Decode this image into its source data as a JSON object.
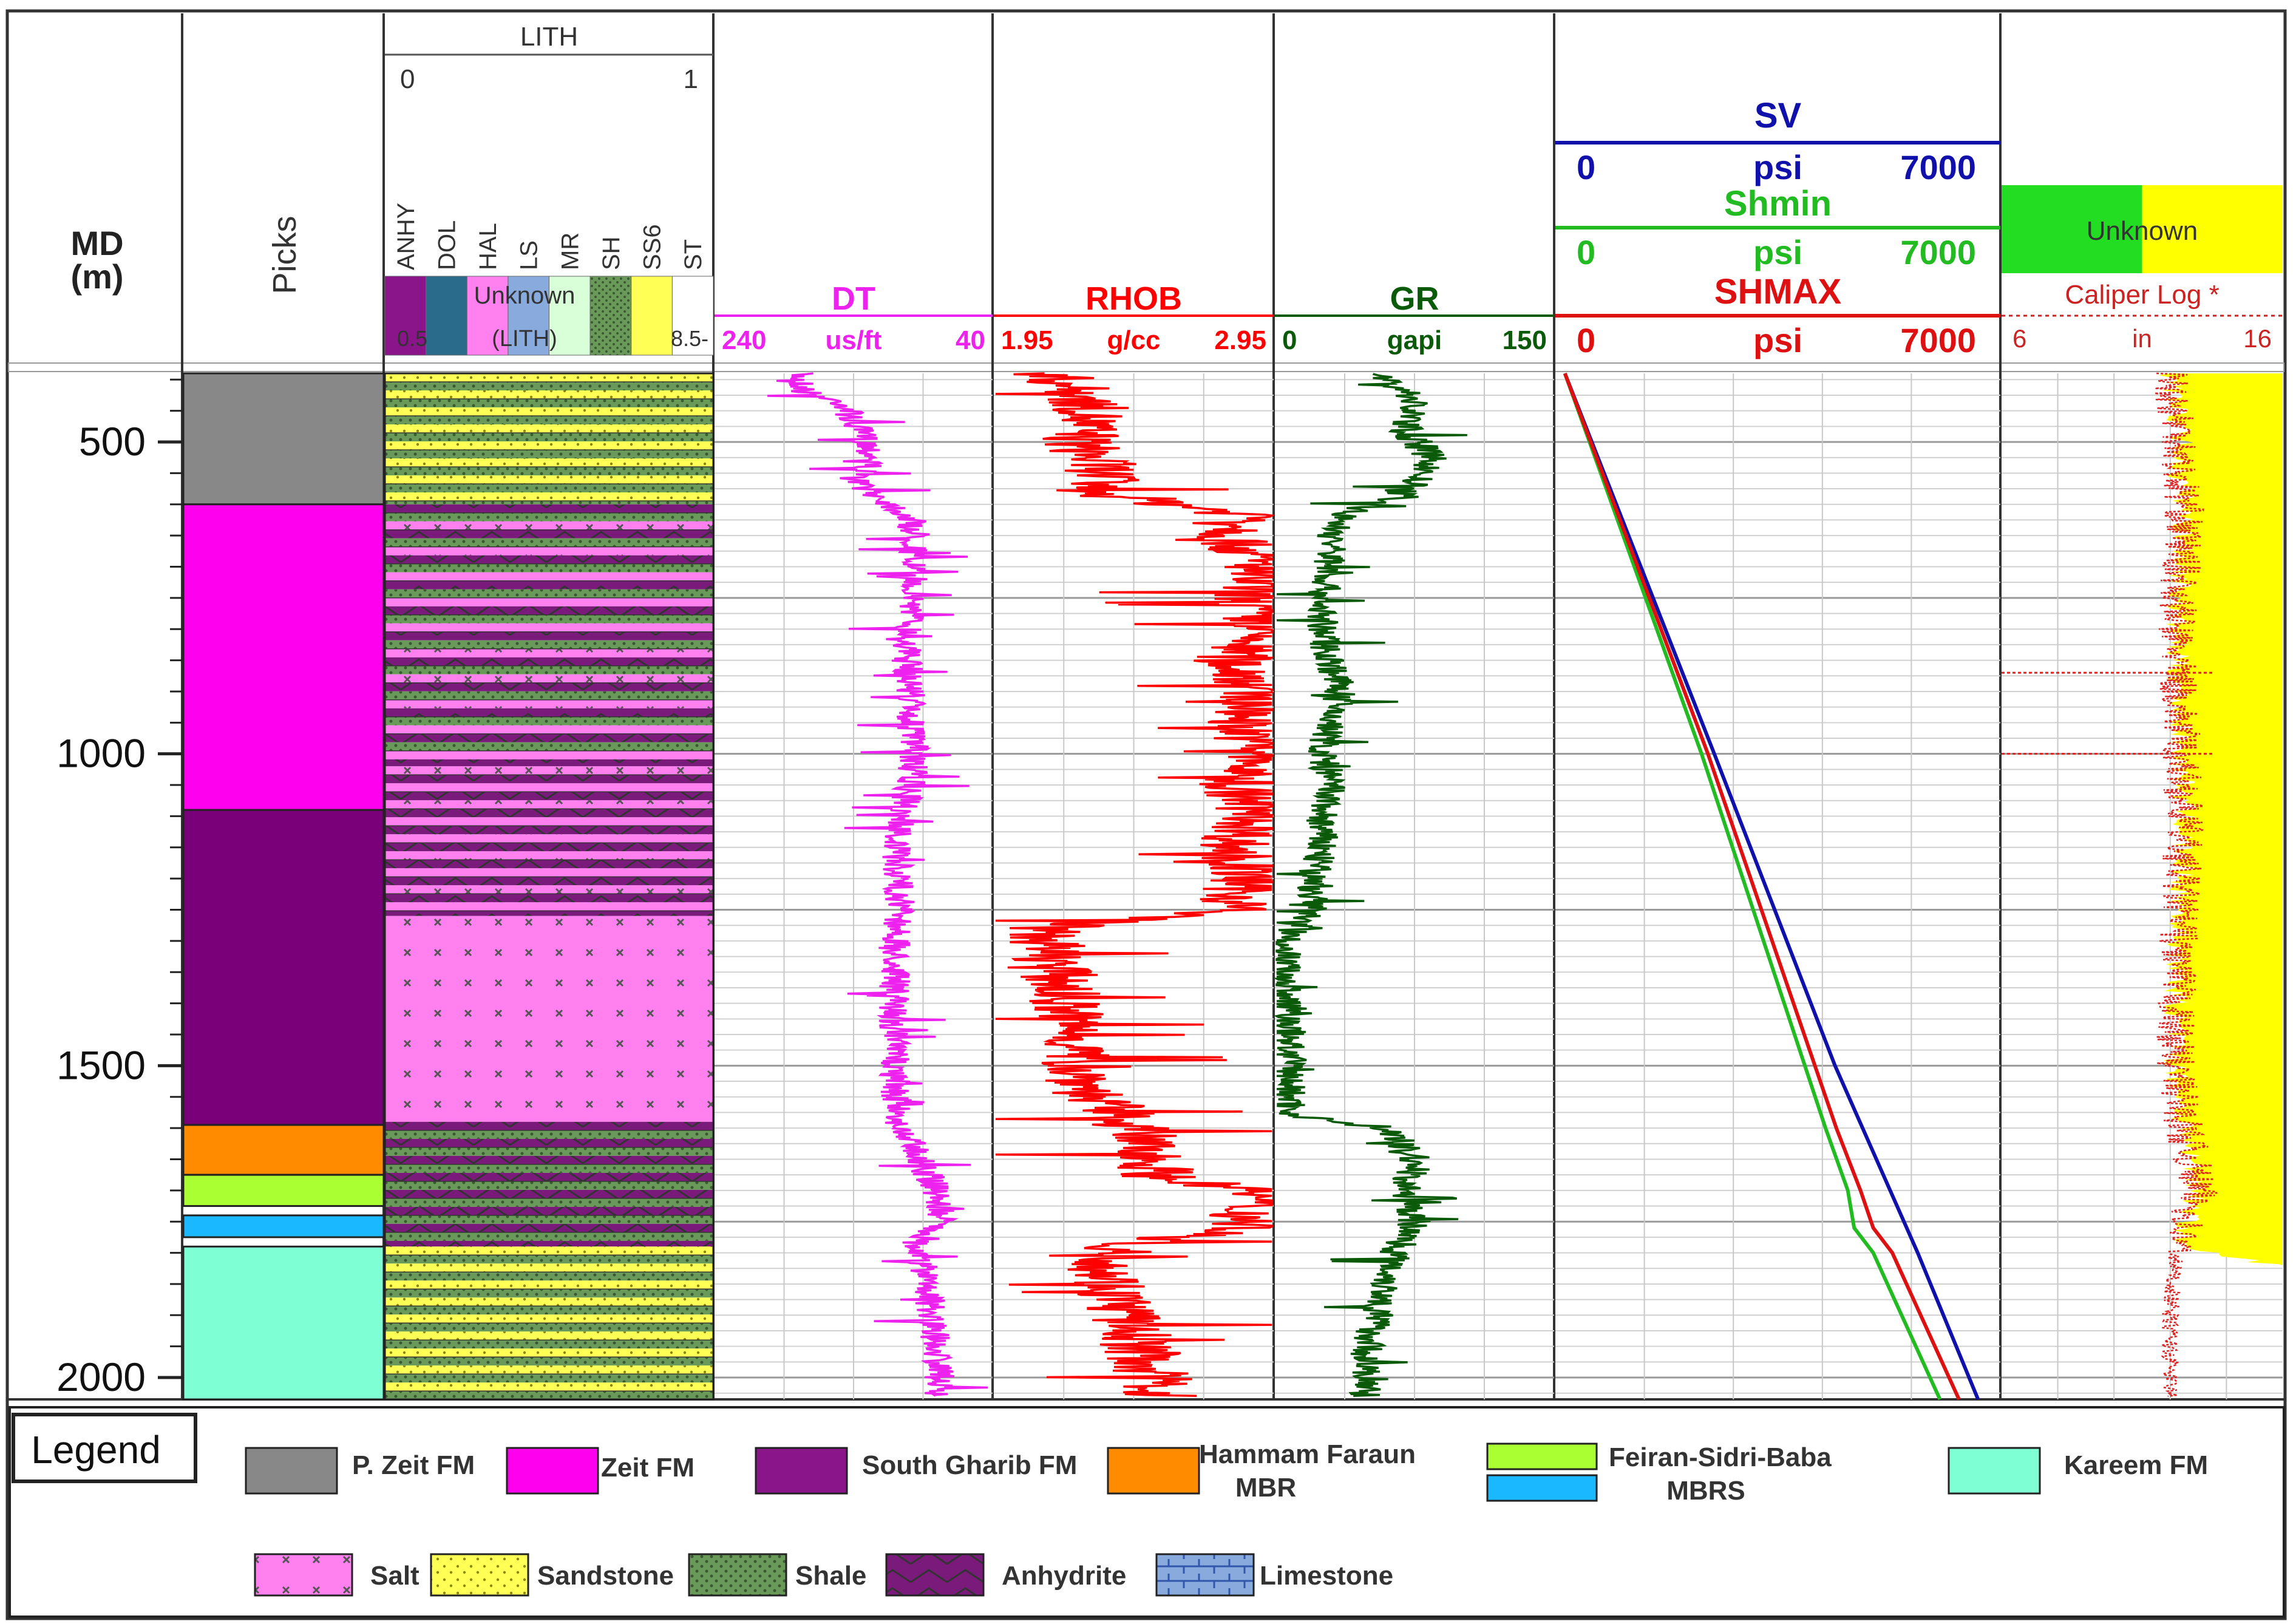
{
  "chart_data": {
    "type": "well-log",
    "depth_axis": {
      "label_line1": "MD",
      "label_line2": "(m)",
      "range": [
        390,
        2035
      ],
      "ticks": [
        500,
        1000,
        1500,
        2000
      ],
      "tick_labels": [
        "500",
        "1000",
        "1500",
        "2000"
      ]
    },
    "tracks": {
      "picks": {
        "title": "Picks",
        "intervals": [
          {
            "name": "P. Zeit FM",
            "top": 390,
            "base": 600,
            "color": "#888888"
          },
          {
            "name": "Zeit FM",
            "top": 600,
            "base": 1090,
            "color": "#ff00ee"
          },
          {
            "name": "South Gharib FM",
            "top": 1090,
            "base": 1595,
            "color": "#7a007a"
          },
          {
            "name": "Hammam Faraun MBR",
            "top": 1595,
            "base": 1675,
            "color": "#ff8c00"
          },
          {
            "name": "Feiran-Sidri-Baba MBRS (Feiran)",
            "top": 1675,
            "base": 1725,
            "color": "#aaff33"
          },
          {
            "name": "Feiran-Sidri-Baba MBRS (Sidri)",
            "top": 1740,
            "base": 1775,
            "color": "#1ab8ff"
          },
          {
            "name": "Kareem FM",
            "top": 1790,
            "base": 2035,
            "color": "#7fffd4"
          }
        ]
      },
      "lith": {
        "title": "LITH",
        "scale_min": "0",
        "scale_max": "1",
        "components": [
          "ANHY",
          "DOL",
          "HAL",
          "LS",
          "MR",
          "SH",
          "SS6",
          "ST"
        ],
        "overlay_text": "Unknown",
        "overlay_text2": "(LITH)",
        "bottom_left": "0.5",
        "bottom_right": "8.5-",
        "intervals": [
          {
            "top": 390,
            "base": 600,
            "type": "sandstone-shale"
          },
          {
            "top": 600,
            "base": 1020,
            "type": "anhydrite-shale-salt"
          },
          {
            "top": 1020,
            "base": 1260,
            "type": "salt-anhydrite"
          },
          {
            "top": 1260,
            "base": 1590,
            "type": "salt"
          },
          {
            "top": 1590,
            "base": 1790,
            "type": "anhydrite-shale"
          },
          {
            "top": 1790,
            "base": 2035,
            "type": "sandstone-shale"
          }
        ]
      },
      "dt": {
        "name": "DT",
        "unit": "us/ft",
        "left_value": "240",
        "right_value": "40",
        "color": "#ee22ee",
        "points": [
          [
            390,
            180
          ],
          [
            420,
            175
          ],
          [
            440,
            145
          ],
          [
            470,
            140
          ],
          [
            500,
            130
          ],
          [
            530,
            125
          ],
          [
            560,
            140
          ],
          [
            590,
            120
          ],
          [
            620,
            100
          ],
          [
            650,
            95
          ],
          [
            700,
            98
          ],
          [
            750,
            96
          ],
          [
            800,
            100
          ],
          [
            850,
            102
          ],
          [
            900,
            98
          ],
          [
            950,
            100
          ],
          [
            1000,
            96
          ],
          [
            1050,
            100
          ],
          [
            1100,
            105
          ],
          [
            1150,
            110
          ],
          [
            1200,
            108
          ],
          [
            1250,
            106
          ],
          [
            1300,
            110
          ],
          [
            1350,
            110
          ],
          [
            1400,
            111
          ],
          [
            1450,
            111
          ],
          [
            1500,
            110
          ],
          [
            1540,
            110
          ],
          [
            1580,
            108
          ],
          [
            1600,
            108
          ],
          [
            1630,
            95
          ],
          [
            1660,
            90
          ],
          [
            1700,
            80
          ],
          [
            1750,
            78
          ],
          [
            1780,
            90
          ],
          [
            1800,
            95
          ],
          [
            1850,
            85
          ],
          [
            1900,
            85
          ],
          [
            1950,
            80
          ],
          [
            2000,
            78
          ],
          [
            2030,
            80
          ]
        ]
      },
      "rhob": {
        "name": "RHOB",
        "unit": "g/cc",
        "left_value": "1.95",
        "right_value": "2.95",
        "color": "#ff0000",
        "points": [
          [
            390,
            2.15
          ],
          [
            420,
            2.25
          ],
          [
            450,
            2.3
          ],
          [
            500,
            2.25
          ],
          [
            550,
            2.35
          ],
          [
            580,
            2.3
          ],
          [
            620,
            2.9
          ],
          [
            650,
            2.8
          ],
          [
            700,
            2.9
          ],
          [
            750,
            2.85
          ],
          [
            800,
            2.9
          ],
          [
            850,
            2.8
          ],
          [
            900,
            2.9
          ],
          [
            950,
            2.85
          ],
          [
            1000,
            2.9
          ],
          [
            1050,
            2.8
          ],
          [
            1100,
            2.9
          ],
          [
            1150,
            2.8
          ],
          [
            1200,
            2.85
          ],
          [
            1250,
            2.8
          ],
          [
            1280,
            2.12
          ],
          [
            1320,
            2.15
          ],
          [
            1350,
            2.18
          ],
          [
            1400,
            2.2
          ],
          [
            1450,
            2.25
          ],
          [
            1500,
            2.25
          ],
          [
            1550,
            2.3
          ],
          [
            1580,
            2.4
          ],
          [
            1600,
            2.45
          ],
          [
            1640,
            2.5
          ],
          [
            1680,
            2.55
          ],
          [
            1700,
            2.9
          ],
          [
            1730,
            2.85
          ],
          [
            1760,
            2.85
          ],
          [
            1790,
            2.4
          ],
          [
            1830,
            2.35
          ],
          [
            1880,
            2.4
          ],
          [
            1930,
            2.45
          ],
          [
            1980,
            2.5
          ],
          [
            2030,
            2.55
          ]
        ]
      },
      "gr": {
        "name": "GR",
        "unit": "gapi",
        "left_value": "0",
        "right_value": "150",
        "color": "#0a5a0a",
        "points": [
          [
            390,
            55
          ],
          [
            430,
            75
          ],
          [
            480,
            70
          ],
          [
            530,
            85
          ],
          [
            580,
            70
          ],
          [
            620,
            35
          ],
          [
            660,
            30
          ],
          [
            700,
            30
          ],
          [
            750,
            25
          ],
          [
            800,
            25
          ],
          [
            850,
            30
          ],
          [
            900,
            35
          ],
          [
            950,
            30
          ],
          [
            1000,
            25
          ],
          [
            1050,
            30
          ],
          [
            1100,
            25
          ],
          [
            1150,
            25
          ],
          [
            1200,
            20
          ],
          [
            1250,
            20
          ],
          [
            1300,
            6
          ],
          [
            1350,
            6
          ],
          [
            1400,
            6
          ],
          [
            1450,
            8
          ],
          [
            1500,
            8
          ],
          [
            1550,
            8
          ],
          [
            1580,
            10
          ],
          [
            1600,
            60
          ],
          [
            1650,
            75
          ],
          [
            1700,
            70
          ],
          [
            1750,
            75
          ],
          [
            1800,
            65
          ],
          [
            1850,
            60
          ],
          [
            1900,
            55
          ],
          [
            1950,
            50
          ],
          [
            2000,
            48
          ],
          [
            2030,
            50
          ]
        ]
      },
      "stress": {
        "unit": "psi",
        "min_value": "0",
        "max_value": "7000",
        "series": [
          {
            "name": "SV",
            "color": "#1010aa",
            "points": [
              [
                390,
                150
              ],
              [
                1000,
                2500
              ],
              [
                1500,
                4400
              ],
              [
                1800,
                5700
              ],
              [
                2035,
                6650
              ]
            ]
          },
          {
            "name": "Shmin",
            "color": "#22bb22",
            "points": [
              [
                390,
                150
              ],
              [
                1000,
                2300
              ],
              [
                1600,
                4250
              ],
              [
                1700,
                4600
              ],
              [
                1760,
                4700
              ],
              [
                1800,
                5000
              ],
              [
                2035,
                6050
              ]
            ]
          },
          {
            "name": "SHMAX",
            "color": "#dd1111",
            "points": [
              [
                390,
                150
              ],
              [
                1000,
                2400
              ],
              [
                1600,
                4420
              ],
              [
                1700,
                4800
              ],
              [
                1760,
                5000
              ],
              [
                1800,
                5300
              ],
              [
                2035,
                6350
              ]
            ]
          }
        ]
      },
      "caliper": {
        "title": "Unknown",
        "name": "Caliper Log *",
        "unit": "in",
        "left_value": "6",
        "right_value": "16",
        "fill_color": "#ffff00",
        "points": [
          [
            390,
            12
          ],
          [
            450,
            12.2
          ],
          [
            500,
            12.4
          ],
          [
            550,
            12.3
          ],
          [
            600,
            12.5
          ],
          [
            700,
            12.4
          ],
          [
            800,
            12.2
          ],
          [
            900,
            12.3
          ],
          [
            1000,
            12.4
          ],
          [
            1100,
            12.5
          ],
          [
            1200,
            12.4
          ],
          [
            1300,
            12.3
          ],
          [
            1400,
            12.2
          ],
          [
            1500,
            12.2
          ],
          [
            1600,
            12.5
          ],
          [
            1700,
            13
          ],
          [
            1800,
            12.2
          ],
          [
            1850,
            12.1
          ],
          [
            1900,
            12
          ],
          [
            2035,
            12
          ]
        ]
      }
    },
    "legend": {
      "title": "Legend",
      "formations": [
        {
          "label": "P. Zeit FM",
          "color": "#888888"
        },
        {
          "label": "Zeit FM",
          "color": "#ff00ee"
        },
        {
          "label": "South Gharib FM",
          "color": "#8a148a"
        },
        {
          "label": "Hammam Faraun",
          "label2": "MBR",
          "color": "#ff8c00"
        },
        {
          "label": "Feiran-Sidri-Baba",
          "label2": "MBRS",
          "color": "#aaff33",
          "color2": "#1ab8ff"
        },
        {
          "label": "Kareem FM",
          "color": "#7fffd4"
        }
      ],
      "lithologies": [
        {
          "label": "Salt",
          "color": "#ff80ee"
        },
        {
          "label": "Sandstone",
          "color": "#ffff55"
        },
        {
          "label": "Shale",
          "color": "#6a9a5a"
        },
        {
          "label": "Anhydrite",
          "color": "#7a1a7a"
        },
        {
          "label": "Limestone",
          "color": "#88aadd"
        }
      ]
    }
  }
}
